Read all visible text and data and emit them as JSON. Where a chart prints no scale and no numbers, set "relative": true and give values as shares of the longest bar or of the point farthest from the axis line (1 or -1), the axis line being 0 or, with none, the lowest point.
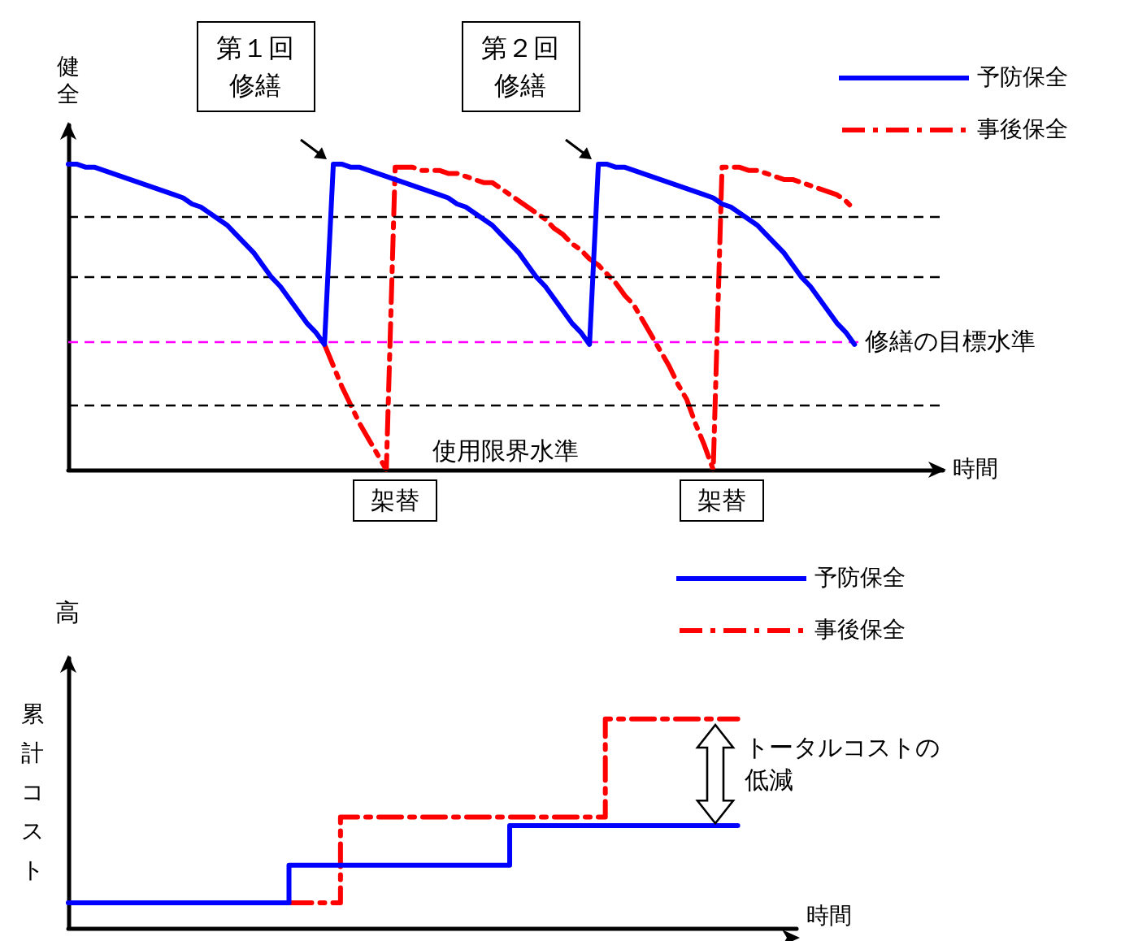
{
  "chart_data": [
    {
      "type": "line",
      "relative": true,
      "xlabel": "時間",
      "ylabel": "健全",
      "grid": false,
      "legend": "top right",
      "marker": "none",
      "categories": [
        null,
        null,
        null,
        null,
        null,
        null,
        null,
        null,
        null,
        null,
        null,
        null,
        null,
        null,
        null,
        null,
        null,
        null,
        null,
        null,
        null,
        null,
        null,
        null,
        null,
        null,
        null,
        null,
        null,
        null,
        null,
        null,
        null,
        null,
        null,
        null,
        null,
        null,
        null,
        null,
        null,
        null,
        null,
        null,
        null,
        null,
        null,
        null,
        null,
        null,
        null,
        null,
        null,
        null,
        null,
        null,
        null,
        null,
        null,
        null,
        null,
        null,
        null,
        null,
        null,
        null,
        null,
        null,
        null,
        null,
        null,
        null,
        null,
        null,
        null,
        null,
        null,
        null,
        null,
        null,
        null,
        null,
        null,
        null,
        null,
        null,
        null,
        null,
        null,
        null,
        null,
        null,
        null,
        null,
        null,
        null,
        null,
        null,
        null,
        null
      ],
      "series": [
        {
          "name": "予防保全",
          "color": "#0000ff",
          "line_style": "solid",
          "values": [
            1.0,
            1.0,
            0.99,
            0.99,
            0.98,
            0.97,
            0.96,
            0.95,
            0.94,
            0.93,
            0.92,
            0.91,
            0.9,
            0.89,
            0.87,
            0.86,
            0.84,
            0.82,
            0.8,
            0.77,
            0.74,
            0.71,
            0.67,
            0.63,
            0.6,
            0.56,
            0.52,
            0.48,
            0.45,
            0.41,
            1.0,
            1.0,
            0.99,
            0.99,
            0.98,
            0.97,
            0.96,
            0.95,
            0.94,
            0.93,
            0.92,
            0.91,
            0.9,
            0.89,
            0.87,
            0.86,
            0.84,
            0.82,
            0.8,
            0.77,
            0.74,
            0.71,
            0.67,
            0.63,
            0.6,
            0.56,
            0.52,
            0.48,
            0.45,
            0.41,
            1.0,
            1.0,
            0.99,
            0.99,
            0.98,
            0.97,
            0.96,
            0.95,
            0.94,
            0.93,
            0.92,
            0.91,
            0.9,
            0.89,
            0.87,
            0.86,
            0.84,
            0.82,
            0.8,
            0.77,
            0.74,
            0.71,
            0.67,
            0.63,
            0.6,
            0.56,
            0.52,
            0.48,
            0.45,
            0.41,
            null,
            null,
            null,
            null,
            null,
            null,
            null,
            null,
            null,
            null
          ]
        },
        {
          "name": "事後保全",
          "color": "#ff0000",
          "line_style": "dashed",
          "values": [
            null,
            null,
            null,
            null,
            null,
            null,
            null,
            null,
            null,
            null,
            null,
            null,
            null,
            null,
            null,
            null,
            null,
            null,
            null,
            null,
            null,
            null,
            null,
            null,
            null,
            null,
            null,
            null,
            null,
            0.41,
            0.34,
            0.27,
            0.21,
            0.15,
            0.1,
            0.05,
            0.0,
            0.99,
            0.99,
            0.99,
            0.98,
            0.98,
            0.98,
            0.97,
            0.97,
            0.96,
            0.95,
            0.94,
            0.94,
            0.92,
            0.9,
            0.88,
            0.86,
            0.84,
            0.82,
            0.79,
            0.77,
            0.74,
            0.72,
            0.69,
            0.67,
            0.64,
            0.61,
            0.57,
            0.54,
            0.49,
            0.44,
            0.39,
            0.34,
            0.28,
            0.23,
            0.15,
            0.08,
            0.0,
            0.99,
            0.99,
            0.99,
            0.98,
            0.98,
            0.97,
            0.96,
            0.95,
            0.95,
            0.94,
            0.93,
            0.92,
            0.91,
            0.9,
            0.88,
            0.85,
            null,
            null,
            null,
            null,
            null,
            null,
            null,
            null,
            null,
            null
          ]
        }
      ],
      "ref_lines": [
        {
          "axis": "y",
          "value": 0.83,
          "color": "#000000",
          "line_style": "dashed"
        },
        {
          "axis": "y",
          "value": 0.63,
          "color": "#000000",
          "line_style": "dashed"
        },
        {
          "axis": "y",
          "value": 0.42,
          "label": "修繕の目標水準",
          "color": "#ff00ff",
          "line_style": "dashed"
        },
        {
          "axis": "y",
          "value": 0.21,
          "color": "#000000",
          "line_style": "dashed"
        },
        {
          "axis": "y",
          "value": 0,
          "label": "使用限界水準",
          "color": "#000000",
          "line_style": "solid"
        }
      ],
      "annotations": [
        "第１回修繕",
        "第２回修繕",
        "架替",
        "架替"
      ]
    },
    {
      "type": "step",
      "relative": true,
      "xlabel": "時間",
      "ylabel": "累計コスト",
      "grid": false,
      "legend": "top right",
      "marker": "none",
      "categories": [
        null,
        null,
        null,
        null,
        null,
        null,
        null,
        null,
        null,
        null,
        null,
        null,
        null,
        null,
        null,
        null,
        null,
        null,
        null,
        null,
        null,
        null,
        null,
        null,
        null,
        null,
        null,
        null,
        null,
        null,
        null,
        null,
        null,
        null,
        null,
        null,
        null,
        null,
        null,
        null,
        null,
        null,
        null,
        null,
        null,
        null,
        null,
        null,
        null,
        null,
        null,
        null,
        null,
        null,
        null,
        null,
        null,
        null,
        null,
        null,
        null,
        null,
        null,
        null,
        null,
        null,
        null,
        null,
        null,
        null,
        null,
        null,
        null,
        null,
        null,
        null,
        null,
        null,
        null,
        null,
        null,
        null,
        null,
        null,
        null,
        null,
        null,
        null,
        null,
        null,
        null,
        null,
        null,
        null,
        null,
        null,
        null,
        null,
        null,
        null
      ],
      "series": [
        {
          "name": "予防保全",
          "color": "#0000ff",
          "line_style": "solid",
          "values": [
            0.12,
            0.12,
            0.12,
            0.12,
            0.12,
            0.12,
            0.12,
            0.12,
            0.12,
            0.12,
            0.12,
            0.12,
            0.12,
            0.12,
            0.12,
            0.12,
            0.12,
            0.12,
            0.12,
            0.12,
            0.12,
            0.12,
            0.12,
            0.12,
            0.12,
            0.12,
            0.12,
            0.12,
            0.12,
            0.12,
            0.3,
            0.3,
            0.3,
            0.3,
            0.3,
            0.3,
            0.3,
            0.3,
            0.3,
            0.3,
            0.3,
            0.3,
            0.3,
            0.3,
            0.3,
            0.3,
            0.3,
            0.3,
            0.3,
            0.3,
            0.3,
            0.3,
            0.3,
            0.3,
            0.3,
            0.3,
            0.3,
            0.3,
            0.3,
            0.3,
            0.49,
            0.49,
            0.49,
            0.49,
            0.49,
            0.49,
            0.49,
            0.49,
            0.49,
            0.49,
            0.49,
            0.49,
            0.49,
            0.49,
            0.49,
            0.49,
            0.49,
            0.49,
            0.49,
            0.49,
            0.49,
            0.49,
            0.49,
            0.49,
            0.49,
            0.49,
            0.49,
            0.49,
            0.49,
            0.49,
            0.49,
            null,
            null,
            null,
            null,
            null,
            null,
            null,
            null,
            null
          ]
        },
        {
          "name": "事後保全",
          "color": "#ff0000",
          "line_style": "dashed",
          "values": [
            null,
            null,
            null,
            null,
            null,
            null,
            null,
            null,
            null,
            null,
            null,
            null,
            null,
            null,
            null,
            null,
            null,
            null,
            null,
            null,
            null,
            null,
            null,
            null,
            null,
            null,
            null,
            null,
            null,
            null,
            0.12,
            0.12,
            0.12,
            0.12,
            0.12,
            0.12,
            0.12,
            0.53,
            0.53,
            0.53,
            0.53,
            0.53,
            0.53,
            0.53,
            0.53,
            0.53,
            0.53,
            0.53,
            0.53,
            0.53,
            0.53,
            0.53,
            0.53,
            0.53,
            0.53,
            0.53,
            0.53,
            0.53,
            0.53,
            0.53,
            0.53,
            0.53,
            0.53,
            0.53,
            0.53,
            0.53,
            0.53,
            0.53,
            0.53,
            0.53,
            0.53,
            0.53,
            0.53,
            1.0,
            1.0,
            1.0,
            1.0,
            1.0,
            1.0,
            1.0,
            1.0,
            1.0,
            1.0,
            1.0,
            1.0,
            1.0,
            1.0,
            1.0,
            1.0,
            1.0,
            1.0,
            null,
            null,
            null,
            null,
            null,
            null,
            null,
            null,
            null
          ]
        }
      ],
      "annotations": [
        "高",
        "トータルコストの低減"
      ]
    }
  ]
}
